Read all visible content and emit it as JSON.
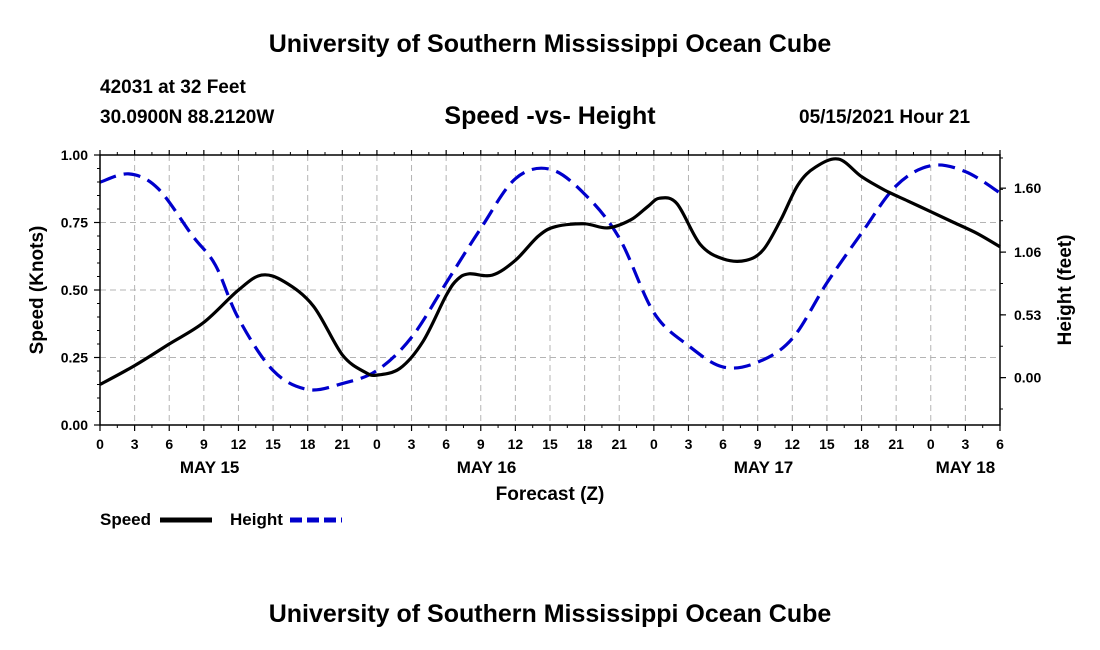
{
  "header": {
    "title": "University of Southern Mississippi Ocean Cube",
    "station": "42031 at 32 Feet",
    "coords": "30.0900N  88.2120W",
    "chart_title": "Speed -vs- Height",
    "datetime": "05/15/2021 Hour 21"
  },
  "footer": {
    "title": "University of Southern Mississippi Ocean Cube"
  },
  "chart_data": {
    "type": "line",
    "title": "Speed -vs- Height",
    "xlabel": "Forecast (Z)",
    "ylabel": "Speed (Knots)",
    "y2label": "Height (feet)",
    "x_range": [
      0,
      78
    ],
    "xtick_hours": [
      0,
      3,
      6,
      9,
      12,
      15,
      18,
      21,
      24,
      27,
      30,
      33,
      36,
      39,
      42,
      45,
      48,
      51,
      54,
      57,
      60,
      63,
      66,
      69,
      72,
      75,
      78
    ],
    "xtick_labels": [
      "0",
      "3",
      "6",
      "9",
      "12",
      "15",
      "18",
      "21",
      "0",
      "3",
      "6",
      "9",
      "12",
      "15",
      "18",
      "21",
      "0",
      "3",
      "6",
      "9",
      "12",
      "15",
      "18",
      "21",
      "0",
      "3",
      "6"
    ],
    "day_labels": [
      {
        "label": "MAY 15",
        "hour": 9.5
      },
      {
        "label": "MAY 16",
        "hour": 33.5
      },
      {
        "label": "MAY 17",
        "hour": 57.5
      },
      {
        "label": "MAY 18",
        "hour": 75
      }
    ],
    "y_left": {
      "range": [
        0,
        1
      ],
      "ticks": [
        0,
        0.25,
        0.5,
        0.75,
        1
      ],
      "tick_labels": [
        "0.00",
        "0.25",
        "0.50",
        "0.75",
        "1.00"
      ]
    },
    "y_right": {
      "range": [
        -0.4,
        1.88
      ],
      "ticks": [
        0,
        0.53,
        1.06,
        1.6
      ],
      "tick_labels": [
        "0.00",
        "0.53",
        "1.06",
        "1.60"
      ]
    },
    "grid": true,
    "legend_position": "bottom-left",
    "series": [
      {
        "name": "Speed",
        "axis": "left",
        "color": "#000000",
        "dash": "solid",
        "x": [
          0,
          3,
          6,
          9,
          12,
          14,
          16,
          18.5,
          21,
          23,
          24,
          26,
          28,
          30,
          31,
          32,
          34,
          36,
          38,
          39.5,
          42,
          44,
          46,
          47.5,
          48.5,
          50,
          52,
          54,
          56,
          57.5,
          59,
          60.5,
          62,
          64,
          66,
          68,
          70,
          72,
          74,
          76,
          78
        ],
        "y": [
          0.15,
          0.22,
          0.3,
          0.38,
          0.5,
          0.555,
          0.53,
          0.44,
          0.26,
          0.195,
          0.185,
          0.21,
          0.31,
          0.48,
          0.54,
          0.56,
          0.555,
          0.61,
          0.7,
          0.735,
          0.745,
          0.73,
          0.76,
          0.81,
          0.84,
          0.82,
          0.67,
          0.615,
          0.61,
          0.65,
          0.76,
          0.89,
          0.955,
          0.985,
          0.92,
          0.87,
          0.83,
          0.79,
          0.75,
          0.71,
          0.66
        ]
      },
      {
        "name": "Height",
        "axis": "right",
        "color": "#0000cc",
        "dash": "dashed",
        "x": [
          0,
          2.5,
          5,
          8,
          10,
          12,
          15,
          18,
          21,
          24,
          27,
          30,
          33,
          36,
          39,
          42,
          45,
          48,
          51,
          54,
          57,
          60,
          63,
          66,
          69,
          72,
          75,
          78
        ],
        "y": [
          1.65,
          1.72,
          1.6,
          1.2,
          0.95,
          0.5,
          0.06,
          -0.1,
          -0.05,
          0.06,
          0.34,
          0.8,
          1.26,
          1.68,
          1.76,
          1.55,
          1.18,
          0.55,
          0.27,
          0.09,
          0.13,
          0.33,
          0.8,
          1.22,
          1.62,
          1.79,
          1.74,
          1.56
        ]
      }
    ]
  }
}
